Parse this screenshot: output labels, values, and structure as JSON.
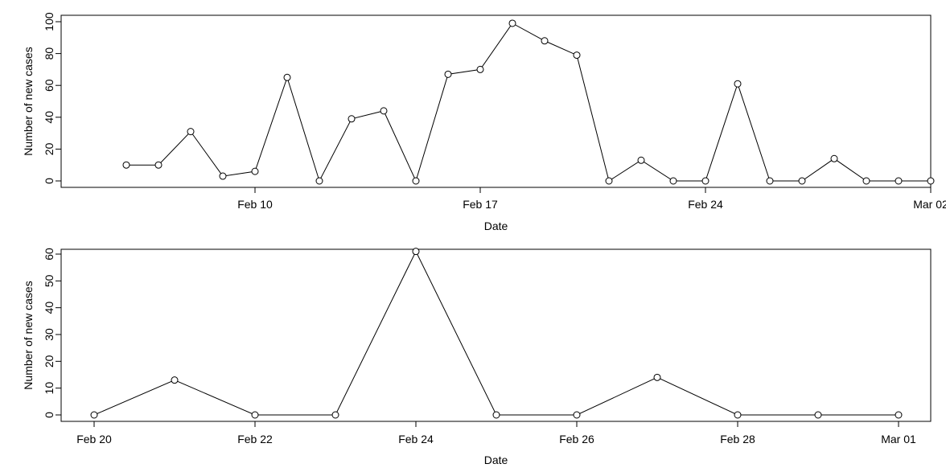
{
  "chart_data": [
    {
      "type": "line",
      "xlabel": "Date",
      "ylabel": "Number of new cases",
      "xtick_labels": [
        "Feb 10",
        "Feb 17",
        "Feb 24",
        "Mar 02"
      ],
      "xticks": [
        "2020-02-10",
        "2020-02-17",
        "2020-02-24",
        "2020-03-02"
      ],
      "xlim": [
        "2020-02-05",
        "2020-03-02"
      ],
      "ylim": [
        0,
        100
      ],
      "yticks": [
        0,
        20,
        40,
        60,
        80,
        100
      ],
      "markers": "open-circle",
      "series": [
        {
          "x": [
            "2020-02-06",
            "2020-02-07",
            "2020-02-08",
            "2020-02-09",
            "2020-02-10",
            "2020-02-11",
            "2020-02-12",
            "2020-02-13",
            "2020-02-14",
            "2020-02-15",
            "2020-02-16",
            "2020-02-17",
            "2020-02-18",
            "2020-02-19",
            "2020-02-20",
            "2020-02-21",
            "2020-02-22",
            "2020-02-23",
            "2020-02-24",
            "2020-02-25",
            "2020-02-26",
            "2020-02-27",
            "2020-02-28",
            "2020-02-29",
            "2020-03-01",
            "2020-03-02"
          ],
          "values": [
            10,
            10,
            31,
            3,
            6,
            65,
            0,
            39,
            44,
            0,
            67,
            70,
            99,
            88,
            79,
            0,
            13,
            0,
            0,
            61,
            0,
            0,
            14,
            0,
            0,
            0
          ]
        }
      ]
    },
    {
      "type": "line",
      "xlabel": "Date",
      "ylabel": "Number of new cases",
      "xtick_labels": [
        "Feb 20",
        "Feb 22",
        "Feb 24",
        "Feb 26",
        "Feb 28",
        "Mar 01"
      ],
      "xticks": [
        "2020-02-20",
        "2020-02-22",
        "2020-02-24",
        "2020-02-26",
        "2020-02-28",
        "2020-03-01"
      ],
      "xlim": [
        "2020-02-20",
        "2020-03-01"
      ],
      "ylim": [
        0,
        60
      ],
      "yticks": [
        0,
        10,
        20,
        30,
        40,
        50,
        60
      ],
      "markers": "open-circle",
      "series": [
        {
          "x": [
            "2020-02-20",
            "2020-02-21",
            "2020-02-22",
            "2020-02-23",
            "2020-02-24",
            "2020-02-25",
            "2020-02-26",
            "2020-02-27",
            "2020-02-28",
            "2020-02-29",
            "2020-03-01"
          ],
          "values": [
            0,
            13,
            0,
            0,
            61,
            0,
            0,
            14,
            0,
            0,
            0
          ]
        }
      ]
    }
  ]
}
